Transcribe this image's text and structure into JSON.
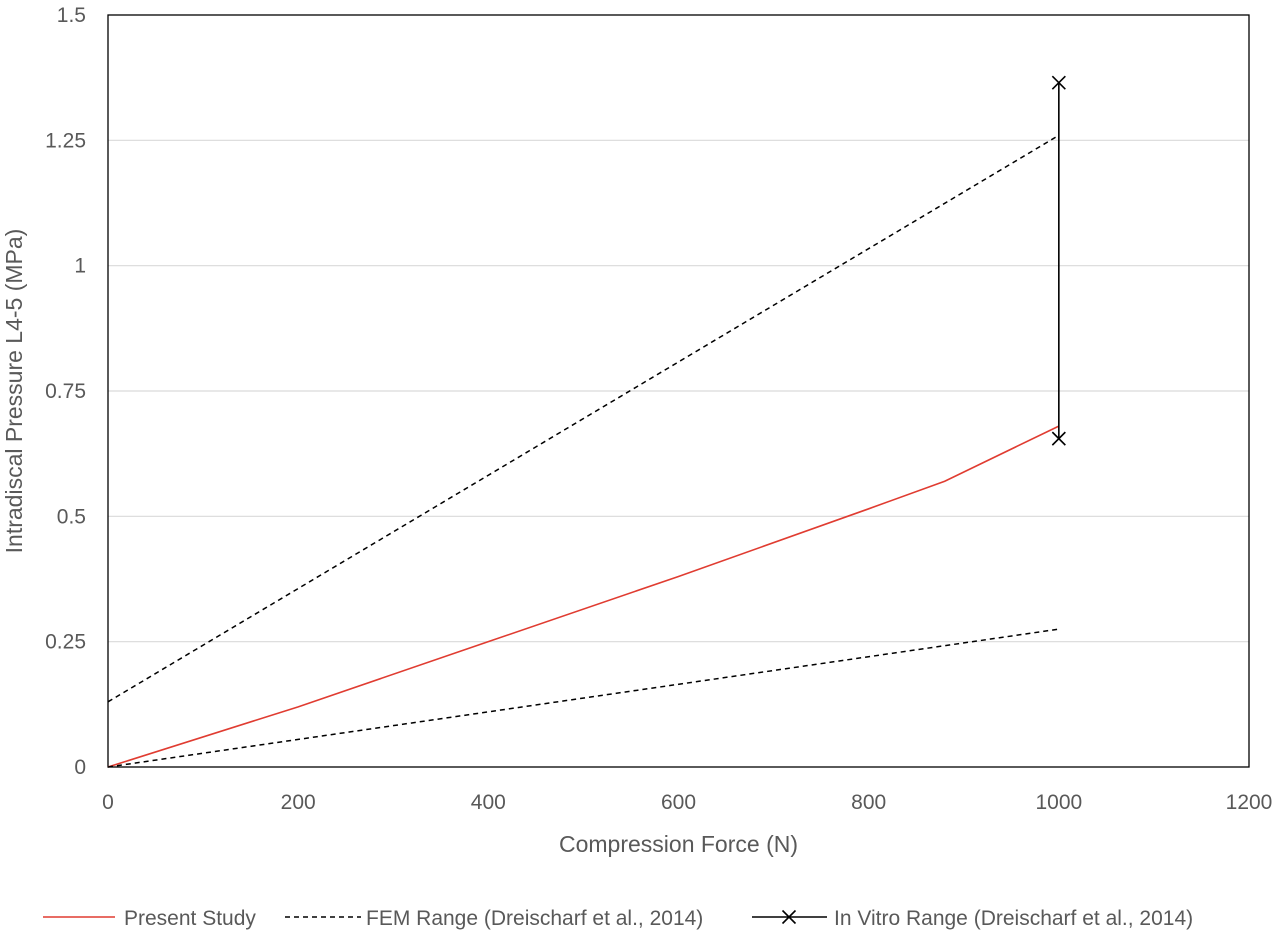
{
  "chart_data": {
    "type": "line",
    "title": "",
    "xlabel": "Compression Force (N)",
    "ylabel": "Intradiscal Pressure L4-5 (MPa)",
    "xlim": [
      0,
      1200
    ],
    "ylim": [
      0,
      1.5
    ],
    "x_ticks": [
      0,
      200,
      400,
      600,
      800,
      1000,
      1200
    ],
    "y_ticks": [
      0,
      0.25,
      0.5,
      0.75,
      1,
      1.25,
      1.5
    ],
    "x_tick_labels": [
      "0",
      "200",
      "400",
      "600",
      "800",
      "1000",
      "1200"
    ],
    "y_tick_labels": [
      "0",
      "0.25",
      "0.5",
      "0.75",
      "1",
      "1.25",
      "1.5"
    ],
    "grid": "horizontal",
    "legend_position": "bottom",
    "series": [
      {
        "name": "Present Study",
        "style": "solid",
        "color": "#e03c31",
        "x": [
          0,
          200,
          400,
          600,
          800,
          880,
          1000
        ],
        "y": [
          0,
          0.12,
          0.25,
          0.38,
          0.515,
          0.57,
          0.68
        ]
      },
      {
        "name": "FEM Range (Dreischarf et al., 2014)",
        "style": "dashed",
        "color": "#000000",
        "lines": [
          {
            "x": [
              0,
              1000
            ],
            "y": [
              0.13,
              1.26
            ]
          },
          {
            "x": [
              0,
              1000
            ],
            "y": [
              0,
              0.275
            ]
          }
        ]
      },
      {
        "name": "In Vitro Range (Dreischarf et al., 2014)",
        "style": "solid-x-markers",
        "color": "#000000",
        "x": [
          1000,
          1000
        ],
        "y": [
          0.655,
          1.365
        ]
      }
    ]
  }
}
